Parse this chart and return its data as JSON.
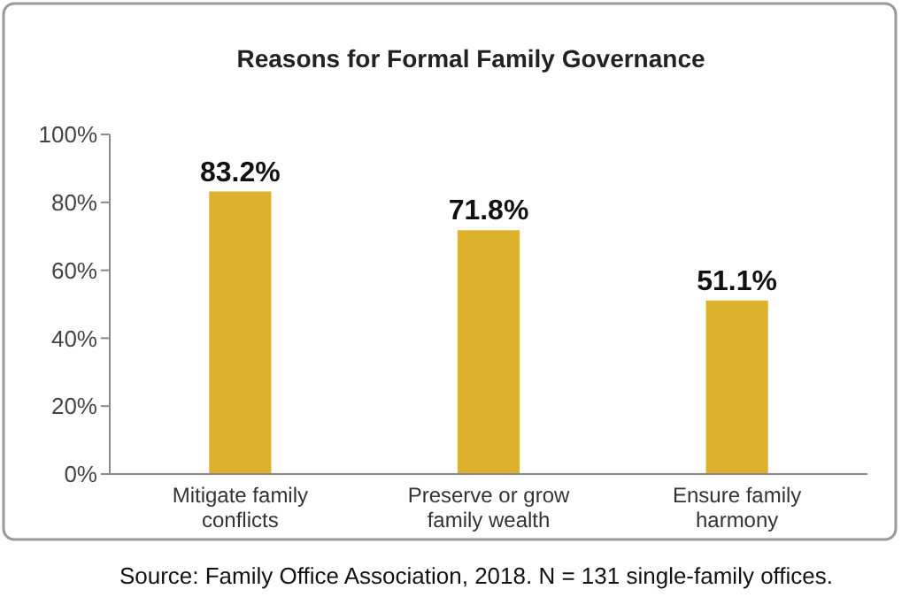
{
  "chart_data": {
    "type": "bar",
    "title": "Reasons for Formal Family Governance",
    "categories": [
      "Mitigate family conflicts",
      "Preserve or grow family wealth",
      "Ensure family harmony"
    ],
    "values": [
      83.2,
      71.8,
      51.1
    ],
    "color": "#dcb12c",
    "value_labels": [
      "83.2%",
      "71.8%",
      "51.1%"
    ],
    "ylim": [
      0,
      100
    ],
    "yticks": [
      {
        "value": 0,
        "label": "0%"
      },
      {
        "value": 20,
        "label": "20%"
      },
      {
        "value": 40,
        "label": "40%"
      },
      {
        "value": 60,
        "label": "60%"
      },
      {
        "value": 80,
        "label": "80%"
      },
      {
        "value": 100,
        "label": "100%"
      }
    ],
    "grid": false,
    "annotations": [
      "Source: Family Office Association, 2018.  N = 131 single-family offices."
    ]
  }
}
